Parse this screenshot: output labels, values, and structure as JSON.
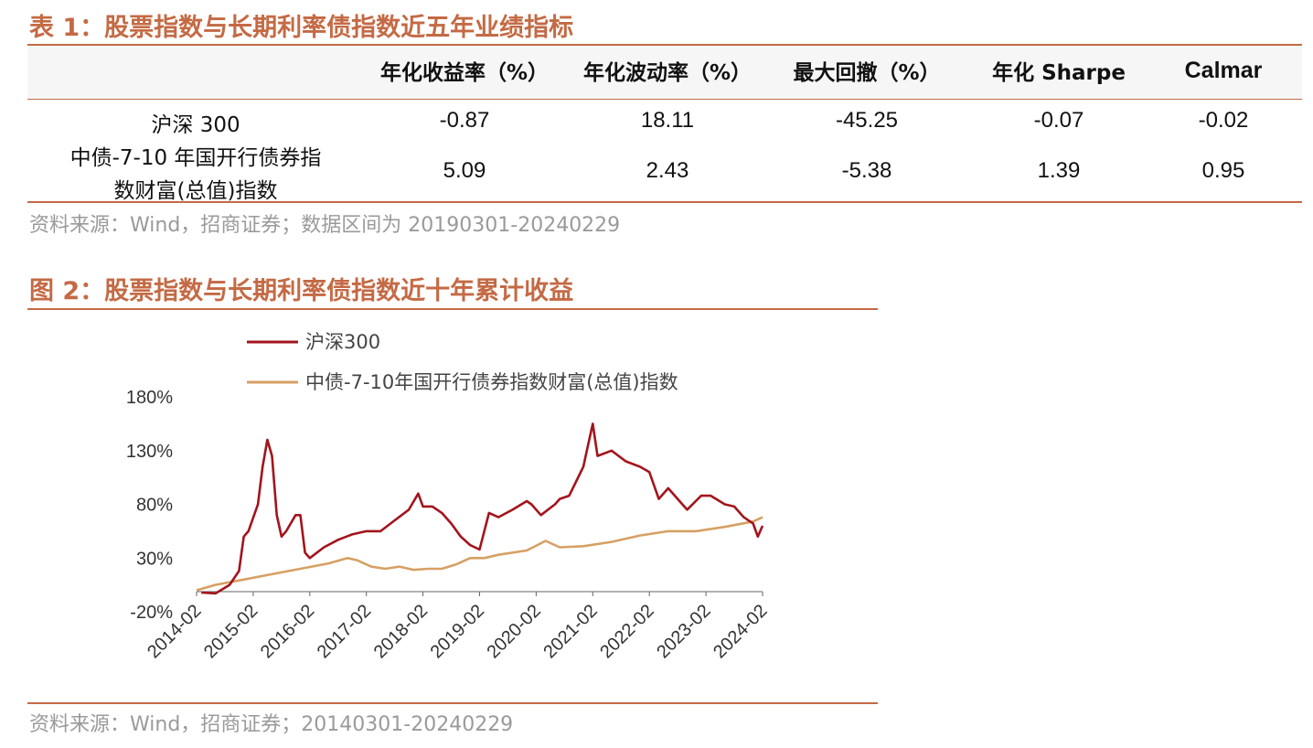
{
  "table1": {
    "title": "表 1：股票指数与长期利率债指数近五年业绩指标",
    "columns": [
      "年化收益率（%）",
      "年化波动率（%）",
      "最大回撤（%）",
      "年化 Sharpe",
      "Calmar"
    ],
    "rows": [
      {
        "label_line1": "沪深 300",
        "label_line2": "",
        "values": [
          "-0.87",
          "18.11",
          "-45.25",
          "-0.07",
          "-0.02"
        ]
      },
      {
        "label_line1": "中债-7-10 年国开行债券指",
        "label_line2": "数财富(总值)指数",
        "values": [
          "5.09",
          "2.43",
          "-5.38",
          "1.39",
          "0.95"
        ]
      }
    ],
    "source": "资料来源：Wind，招商证券；数据区间为 20190301-20240229"
  },
  "figure2": {
    "title": "图 2：股票指数与长期利率债指数近十年累计收益",
    "source": "资料来源：Wind，招商证券；20140301-20240229"
  },
  "chart_data": {
    "type": "line",
    "title": "",
    "xlabel": "",
    "ylabel": "",
    "legend_position": "top",
    "grid": false,
    "ylim": [
      -20,
      180
    ],
    "y_ticks": [
      "180%",
      "130%",
      "80%",
      "30%",
      "-20%"
    ],
    "y_tick_values": [
      180,
      130,
      80,
      30,
      -20
    ],
    "x_ticks": [
      "2014-02",
      "2015-02",
      "2016-02",
      "2017-02",
      "2018-02",
      "2019-02",
      "2020-02",
      "2021-02",
      "2022-02",
      "2023-02",
      "2024-02"
    ],
    "xlim": [
      "2014-02",
      "2024-02"
    ],
    "series": [
      {
        "name": "沪深300",
        "color": "#a3141c",
        "x": [
          "2014-03",
          "2014-06",
          "2014-09",
          "2014-11",
          "2014-12",
          "2015-01",
          "2015-03",
          "2015-04",
          "2015-05",
          "2015-06",
          "2015-07",
          "2015-08",
          "2015-09",
          "2015-11",
          "2015-12",
          "2016-01",
          "2016-02",
          "2016-05",
          "2016-08",
          "2016-11",
          "2017-02",
          "2017-05",
          "2017-08",
          "2017-11",
          "2018-01",
          "2018-02",
          "2018-04",
          "2018-06",
          "2018-08",
          "2018-10",
          "2018-12",
          "2019-01",
          "2019-02",
          "2019-04",
          "2019-06",
          "2019-09",
          "2019-12",
          "2020-01",
          "2020-03",
          "2020-06",
          "2020-07",
          "2020-09",
          "2020-12",
          "2021-01",
          "2021-02",
          "2021-03",
          "2021-06",
          "2021-09",
          "2021-12",
          "2022-02",
          "2022-04",
          "2022-06",
          "2022-08",
          "2022-10",
          "2023-01",
          "2023-03",
          "2023-06",
          "2023-08",
          "2023-10",
          "2023-12",
          "2024-01",
          "2024-02"
        ],
        "values": [
          -2,
          -3,
          5,
          18,
          50,
          55,
          80,
          115,
          140,
          125,
          70,
          50,
          55,
          70,
          70,
          35,
          30,
          40,
          47,
          52,
          55,
          55,
          65,
          75,
          90,
          78,
          78,
          72,
          62,
          50,
          42,
          40,
          38,
          72,
          68,
          75,
          83,
          80,
          70,
          80,
          85,
          88,
          115,
          135,
          155,
          125,
          130,
          120,
          115,
          110,
          85,
          95,
          85,
          75,
          88,
          88,
          80,
          78,
          68,
          62,
          50,
          60
        ]
      },
      {
        "name": "中债-7-10年国开行债券指数财富(总值)指数",
        "color": "#d6a064",
        "x": [
          "2014-02",
          "2014-06",
          "2014-12",
          "2015-06",
          "2015-12",
          "2016-06",
          "2016-10",
          "2016-12",
          "2017-03",
          "2017-06",
          "2017-09",
          "2017-12",
          "2018-03",
          "2018-06",
          "2018-09",
          "2018-12",
          "2019-03",
          "2019-06",
          "2019-12",
          "2020-04",
          "2020-07",
          "2020-12",
          "2021-06",
          "2021-12",
          "2022-06",
          "2022-12",
          "2023-06",
          "2023-12",
          "2024-02"
        ],
        "values": [
          0,
          5,
          10,
          15,
          20,
          25,
          30,
          28,
          22,
          20,
          22,
          19,
          20,
          20,
          24,
          30,
          30,
          33,
          37,
          46,
          40,
          41,
          45,
          51,
          55,
          55,
          59,
          64,
          68
        ]
      }
    ]
  }
}
